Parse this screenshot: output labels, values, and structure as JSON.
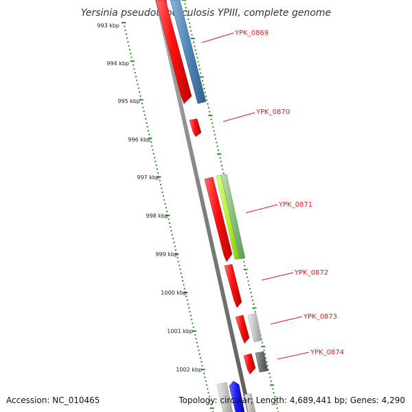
{
  "title": "Yersinia pseudotuberculosis YPIII, complete genome",
  "footer": {
    "accession": "Accession: NC_010465",
    "summary": "Topology: circular; Length: 4,689,441 bp; Genes: 4,290"
  },
  "colors": {
    "backbone": "#8a8a8a",
    "cds": "#ee1111",
    "ruler": "#238b23",
    "label": "#e8141c",
    "track_blue": "#4f86b5",
    "track_lightgreen": "#b8ef3a",
    "track_green": "#86be7e",
    "track_lightgray": "#c4c4c4",
    "track_darkgray": "#6f6f6f",
    "track_brightblue": "#1a1aee"
  },
  "kbp_labels": [
    "993 kbp",
    "994 kbp",
    "995 kbp",
    "996 kbp",
    "997 kbp",
    "998 kbp",
    "999 kbp",
    "1000 kbp",
    "1001 kbp",
    "1002 kbp"
  ],
  "genes": [
    {
      "label": "YPK_0869"
    },
    {
      "label": "YPK_0870"
    },
    {
      "label": "YPK_0871"
    },
    {
      "label": "YPK_0872"
    },
    {
      "label": "YPK_0873"
    },
    {
      "label": "YPK_0874"
    }
  ]
}
